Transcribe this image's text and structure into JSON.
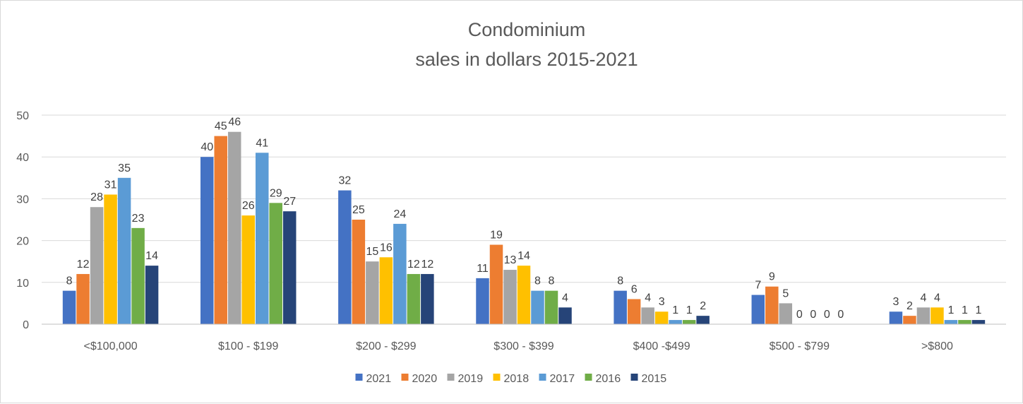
{
  "chart_data": {
    "type": "bar",
    "title": [
      "Condominium",
      "sales in dollars 2015-2021"
    ],
    "xlabel": "",
    "ylabel": "",
    "ylim": [
      0,
      50
    ],
    "yticks": [
      0,
      10,
      20,
      30,
      40,
      50
    ],
    "grid": true,
    "legend_position": "bottom",
    "categories": [
      "<$100,000",
      "$100 - $199",
      "$200 - $299",
      "$300 - $399",
      "$400 -$499",
      "$500 - $799",
      ">$800"
    ],
    "series": [
      {
        "name": "2021",
        "color": "#4472c4",
        "values": [
          8,
          40,
          32,
          11,
          8,
          7,
          3
        ]
      },
      {
        "name": "2020",
        "color": "#ed7d31",
        "values": [
          12,
          45,
          25,
          19,
          6,
          9,
          2
        ]
      },
      {
        "name": "2019",
        "color": "#a5a5a5",
        "values": [
          28,
          46,
          15,
          13,
          4,
          5,
          4
        ]
      },
      {
        "name": "2018",
        "color": "#ffc000",
        "values": [
          31,
          26,
          16,
          14,
          3,
          0,
          4
        ]
      },
      {
        "name": "2017",
        "color": "#5b9bd5",
        "values": [
          35,
          41,
          24,
          8,
          1,
          0,
          1
        ]
      },
      {
        "name": "2016",
        "color": "#70ad47",
        "values": [
          23,
          29,
          12,
          8,
          1,
          0,
          1
        ]
      },
      {
        "name": "2015",
        "color": "#264478",
        "values": [
          14,
          27,
          12,
          4,
          2,
          0,
          1
        ]
      }
    ]
  }
}
